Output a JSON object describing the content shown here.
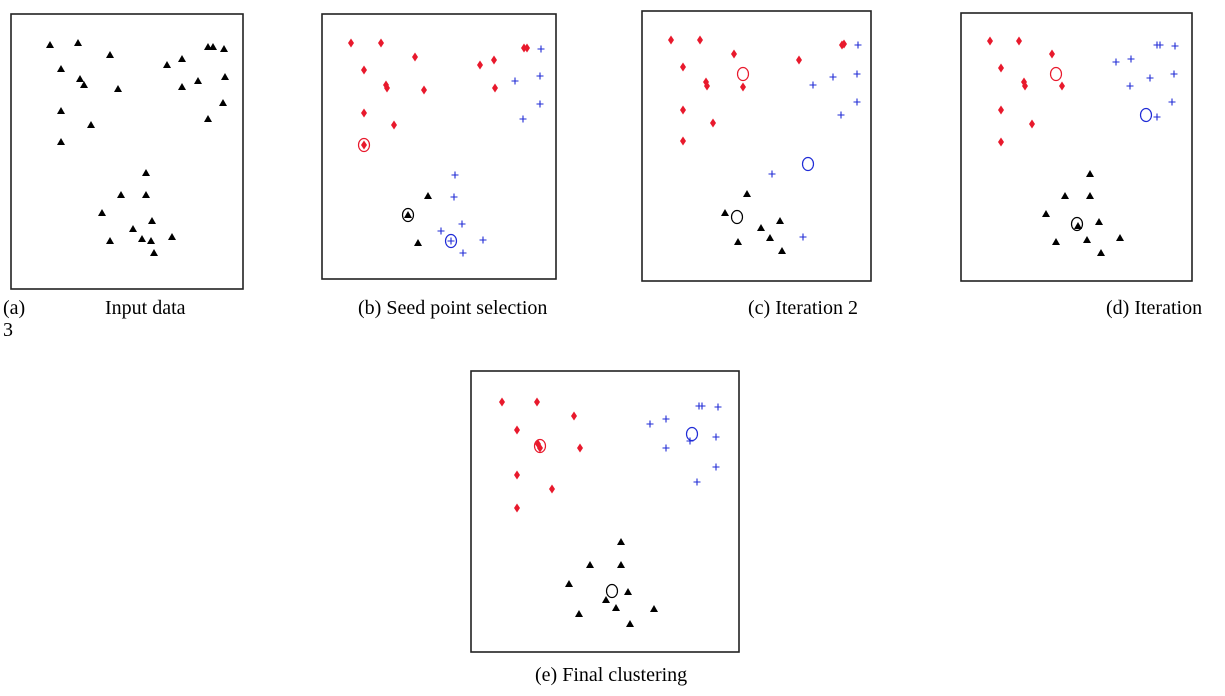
{
  "captions": {
    "a_marker": "(a)",
    "a_text": "Input data",
    "a_wrap": "3",
    "b": "(b) Seed point selection",
    "c": "(c) Iteration 2",
    "d": "(d) Iteration",
    "e": "(e)  Final clustering"
  },
  "colors": {
    "cluster_red": "#e8192c",
    "cluster_blue": "#1f2bd6",
    "cluster_black": "#000000"
  },
  "marker_legend": {
    "red": "diamond",
    "blue": "plus",
    "black": "triangle",
    "centroid": "circle"
  }
}
